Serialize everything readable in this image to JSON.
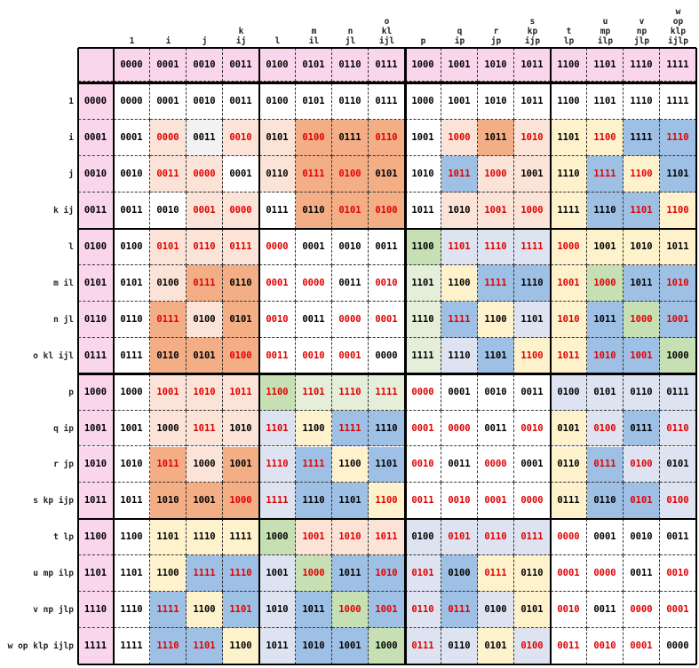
{
  "column_headers": [
    {
      "lines": [
        "1"
      ]
    },
    {
      "lines": [
        "i"
      ]
    },
    {
      "lines": [
        "j"
      ]
    },
    {
      "lines": [
        "k",
        "ij"
      ]
    },
    {
      "lines": [
        "l"
      ]
    },
    {
      "lines": [
        "m",
        "il"
      ]
    },
    {
      "lines": [
        "n",
        "jl"
      ]
    },
    {
      "lines": [
        "o",
        "kl",
        "ijl"
      ]
    },
    {
      "lines": [
        "p"
      ]
    },
    {
      "lines": [
        "q",
        "ip"
      ]
    },
    {
      "lines": [
        "r",
        "jp"
      ]
    },
    {
      "lines": [
        "s",
        "kp",
        "ijp"
      ]
    },
    {
      "lines": [
        "t",
        "lp"
      ]
    },
    {
      "lines": [
        "u",
        "mp",
        "ilp"
      ]
    },
    {
      "lines": [
        "v",
        "np",
        "jlp"
      ]
    },
    {
      "lines": [
        "w",
        "op",
        "klp",
        "ijlp"
      ]
    }
  ],
  "row_labels": [
    "1",
    "i",
    "j",
    "k ij",
    "l",
    "m il",
    "n jl",
    "o kl ijl",
    "p",
    "q ip",
    "r jp",
    "s kp ijp",
    "t lp",
    "u mp ilp",
    "v np jlp",
    "w op klp ijlp"
  ],
  "binary_header": [
    "0000",
    "0001",
    "0010",
    "0011",
    "0100",
    "0101",
    "0110",
    "0111",
    "1000",
    "1001",
    "1010",
    "1011",
    "1100",
    "1101",
    "1110",
    "1111"
  ],
  "colors": {
    "pink": "#f9d6ec",
    "white": "#ffffff",
    "light_red": "#fbe3d7",
    "orange": "#f3ae86",
    "light_gray": "#f2f2f2",
    "light_blue": "#dde3f1",
    "blue": "#9fc0e5",
    "light_yellow": "#fdf2cc",
    "light_green": "#e4eed9",
    "green": "#c6e0b4",
    "red_text": "#e00000",
    "black_text": "#000000"
  },
  "cell_colors": [
    "WWWWWWWWWWWWWWWW",
    "WRGRROOOWRORYYBB",
    "WRRWROOOWBRRYBYB",
    "WWRRWOOOWRRRYBBY",
    "WRRRWWWWGLLLYYYY",
    "WROOWWWWGYBBYGBB",
    "WOROWWWWGBYLYBGB",
    "WOOOWWWWGLBYYBBG",
    "WRRRGGGGWWWWLLLL",
    "WRRRLYBBWWWWYLBL",
    "WOROLBYBWWWWYBLL",
    "WOOOLBBYWWWWYBBL",
    "WYYYGRRRLLLLWWWW",
    "WYBBLGBBLBYYWWWW",
    "WBYBLBGBLBLYWWWW",
    "WBBYLBBGLLYLWWWW"
  ],
  "cells": [
    [
      "0000",
      "0001",
      "0010",
      "0011",
      "0100",
      "0101",
      "0110",
      "0111",
      "1000",
      "1001",
      "1010",
      "1011",
      "1100",
      "1101",
      "1110",
      "1111"
    ],
    [
      "0001",
      "0000",
      "0011",
      "0010",
      "0101",
      "0100",
      "0111",
      "0110",
      "1001",
      "1000",
      "1011",
      "1010",
      "1101",
      "1100",
      "1111",
      "1110"
    ],
    [
      "0010",
      "0011",
      "0000",
      "0001",
      "0110",
      "0111",
      "0100",
      "0101",
      "1010",
      "1011",
      "1000",
      "1001",
      "1110",
      "1111",
      "1100",
      "1101"
    ],
    [
      "0011",
      "0010",
      "0001",
      "0000",
      "0111",
      "0110",
      "0101",
      "0100",
      "1011",
      "1010",
      "1001",
      "1000",
      "1111",
      "1110",
      "1101",
      "1100"
    ],
    [
      "0100",
      "0101",
      "0110",
      "0111",
      "0000",
      "0001",
      "0010",
      "0011",
      "1100",
      "1101",
      "1110",
      "1111",
      "1000",
      "1001",
      "1010",
      "1011"
    ],
    [
      "0101",
      "0100",
      "0111",
      "0110",
      "0001",
      "0000",
      "0011",
      "0010",
      "1101",
      "1100",
      "1111",
      "1110",
      "1001",
      "1000",
      "1011",
      "1010"
    ],
    [
      "0110",
      "0111",
      "0100",
      "0101",
      "0010",
      "0011",
      "0000",
      "0001",
      "1110",
      "1111",
      "1100",
      "1101",
      "1010",
      "1011",
      "1000",
      "1001"
    ],
    [
      "0111",
      "0110",
      "0101",
      "0100",
      "0011",
      "0010",
      "0001",
      "0000",
      "1111",
      "1110",
      "1101",
      "1100",
      "1011",
      "1010",
      "1001",
      "1000"
    ],
    [
      "1000",
      "1001",
      "1010",
      "1011",
      "1100",
      "1101",
      "1110",
      "1111",
      "0000",
      "0001",
      "0010",
      "0011",
      "0100",
      "0101",
      "0110",
      "0111"
    ],
    [
      "1001",
      "1000",
      "1011",
      "1010",
      "1101",
      "1100",
      "1111",
      "1110",
      "0001",
      "0000",
      "0011",
      "0010",
      "0101",
      "0100",
      "0111",
      "0110"
    ],
    [
      "1010",
      "1011",
      "1000",
      "1001",
      "1110",
      "1111",
      "1100",
      "1101",
      "0010",
      "0011",
      "0000",
      "0001",
      "0110",
      "0111",
      "0100",
      "0101"
    ],
    [
      "1011",
      "1010",
      "1001",
      "1000",
      "1111",
      "1110",
      "1101",
      "1100",
      "0011",
      "0010",
      "0001",
      "0000",
      "0111",
      "0110",
      "0101",
      "0100"
    ],
    [
      "1100",
      "1101",
      "1110",
      "1111",
      "1000",
      "1001",
      "1010",
      "1011",
      "0100",
      "0101",
      "0110",
      "0111",
      "0000",
      "0001",
      "0010",
      "0011"
    ],
    [
      "1101",
      "1100",
      "1111",
      "1110",
      "1001",
      "1000",
      "1011",
      "1010",
      "0101",
      "0100",
      "0111",
      "0110",
      "0001",
      "0000",
      "0011",
      "0010"
    ],
    [
      "1110",
      "1111",
      "1100",
      "1101",
      "1010",
      "1011",
      "1000",
      "1001",
      "0110",
      "0111",
      "0100",
      "0101",
      "0010",
      "0011",
      "0000",
      "0001"
    ],
    [
      "1111",
      "1110",
      "1101",
      "1100",
      "1011",
      "1010",
      "1001",
      "1000",
      "0111",
      "0110",
      "0101",
      "0100",
      "0011",
      "0010",
      "0001",
      "0000"
    ]
  ],
  "red_text_mask": [
    "0000000000000000",
    "0101010101010101",
    "0110011001100110",
    "0011001100110011",
    "0111100001111000",
    "0010110100101101",
    "0100101101001011",
    "0001111000011110",
    "0111111110000000",
    "0010101011010101",
    "0100110010100110",
    "0001100111110011",
    "0000011101111000",
    "0011010110101101",
    "0101001111001011",
    "0110000010011110"
  ]
}
